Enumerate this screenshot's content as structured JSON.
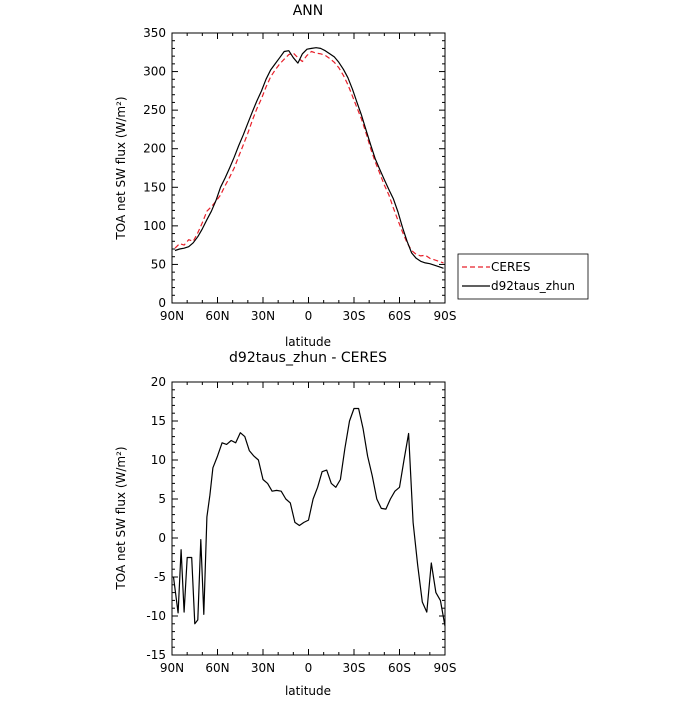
{
  "chart_data": [
    {
      "type": "line",
      "title": "ANN",
      "xlabel": "latitude",
      "ylabel": "TOA net SW flux (W/m²)",
      "x_ticks": [
        "90N",
        "60N",
        "30N",
        "0",
        "30S",
        "60S",
        "90S"
      ],
      "y_ticks": [
        "0",
        "50",
        "100",
        "150",
        "200",
        "250",
        "300",
        "350"
      ],
      "xlim": [
        90,
        -90
      ],
      "ylim": [
        0,
        350
      ],
      "legend": {
        "placement": "right-outside",
        "entries": [
          "CERES",
          "d92taus_zhun"
        ]
      },
      "x": [
        88,
        85,
        82,
        79,
        76,
        73,
        70,
        67,
        64,
        61,
        58,
        55,
        52,
        49,
        46,
        43,
        40,
        37,
        34,
        31,
        28,
        25,
        22,
        19,
        16,
        13,
        10,
        7,
        4,
        1,
        -2,
        -5,
        -8,
        -11,
        -14,
        -17,
        -20,
        -23,
        -26,
        -29,
        -32,
        -35,
        -38,
        -41,
        -44,
        -47,
        -50,
        -53,
        -56,
        -59,
        -62,
        -65,
        -68,
        -71,
        -74,
        -77,
        -80,
        -83,
        -86,
        -89
      ],
      "series": [
        {
          "name": "CERES",
          "color": "#e8202a",
          "dash": "dashed",
          "values": [
            71,
            77,
            75,
            82,
            80,
            91,
            104,
            119,
            125,
            132,
            140,
            152,
            163,
            175,
            190,
            205,
            220,
            237,
            252,
            265,
            280,
            293,
            302,
            310,
            316,
            322,
            324,
            318,
            313,
            321,
            326,
            324,
            323,
            321,
            317,
            312,
            305,
            295,
            283,
            268,
            253,
            238,
            220,
            200,
            183,
            168,
            153,
            140,
            123,
            107,
            92,
            78,
            68,
            63,
            61,
            62,
            58,
            56,
            54,
            52
          ]
        },
        {
          "name": "d92taus_zhun",
          "color": "#000000",
          "dash": "solid",
          "values": [
            68,
            70,
            71,
            73,
            78,
            86,
            96,
            108,
            119,
            133,
            150,
            162,
            175,
            189,
            204,
            218,
            233,
            248,
            262,
            275,
            290,
            302,
            310,
            318,
            326,
            327,
            318,
            311,
            323,
            329,
            330,
            331,
            330,
            327,
            323,
            319,
            312,
            303,
            292,
            277,
            260,
            243,
            224,
            205,
            187,
            173,
            160,
            147,
            135,
            118,
            98,
            80,
            65,
            58,
            54,
            52,
            51,
            49,
            47,
            45
          ]
        }
      ]
    },
    {
      "type": "line",
      "title": "d92taus_zhun - CERES",
      "xlabel": "latitude",
      "ylabel": "TOA net SW flux (W/m²)",
      "x_ticks": [
        "90N",
        "60N",
        "30N",
        "0",
        "30S",
        "60S",
        "90S"
      ],
      "y_ticks": [
        "-15",
        "-10",
        "-5",
        "0",
        "5",
        "10",
        "15",
        "20"
      ],
      "xlim": [
        90,
        -90
      ],
      "ylim": [
        -15,
        20
      ],
      "x": [
        89,
        86,
        84,
        82,
        80,
        77,
        75,
        73,
        71,
        69,
        67,
        65,
        63,
        60,
        57,
        54,
        51,
        48,
        45,
        42,
        39,
        36,
        33,
        30,
        27,
        24,
        21,
        18,
        15,
        12,
        9,
        6,
        3,
        0,
        -3,
        -6,
        -9,
        -12,
        -15,
        -18,
        -21,
        -24,
        -27,
        -30,
        -33,
        -36,
        -39,
        -42,
        -45,
        -48,
        -51,
        -54,
        -57,
        -60,
        -63,
        -66,
        -69,
        -72,
        -75,
        -78,
        -81,
        -84,
        -87,
        -90
      ],
      "series": [
        {
          "name": "",
          "color": "#000000",
          "dash": "solid",
          "values": [
            -5,
            -9.6,
            -1.5,
            -9.5,
            -2.5,
            -2.5,
            -11,
            -10.5,
            -0.2,
            -9.8,
            2.7,
            5.5,
            9,
            10.5,
            12.2,
            12,
            12.5,
            12.2,
            13.5,
            13,
            11.2,
            10.5,
            10,
            7.5,
            7,
            6,
            6.1,
            6,
            5,
            4.5,
            2,
            1.6,
            2,
            2.3,
            5,
            6.5,
            8.5,
            8.7,
            7,
            6.5,
            7.5,
            11.5,
            15,
            16.6,
            16.6,
            14,
            10.5,
            8,
            5,
            3.8,
            3.7,
            5,
            6,
            6.5,
            10,
            13.4,
            2,
            -3.5,
            -8.2,
            -9.5,
            -3.2,
            -7,
            -8,
            -11.3
          ]
        }
      ]
    }
  ]
}
